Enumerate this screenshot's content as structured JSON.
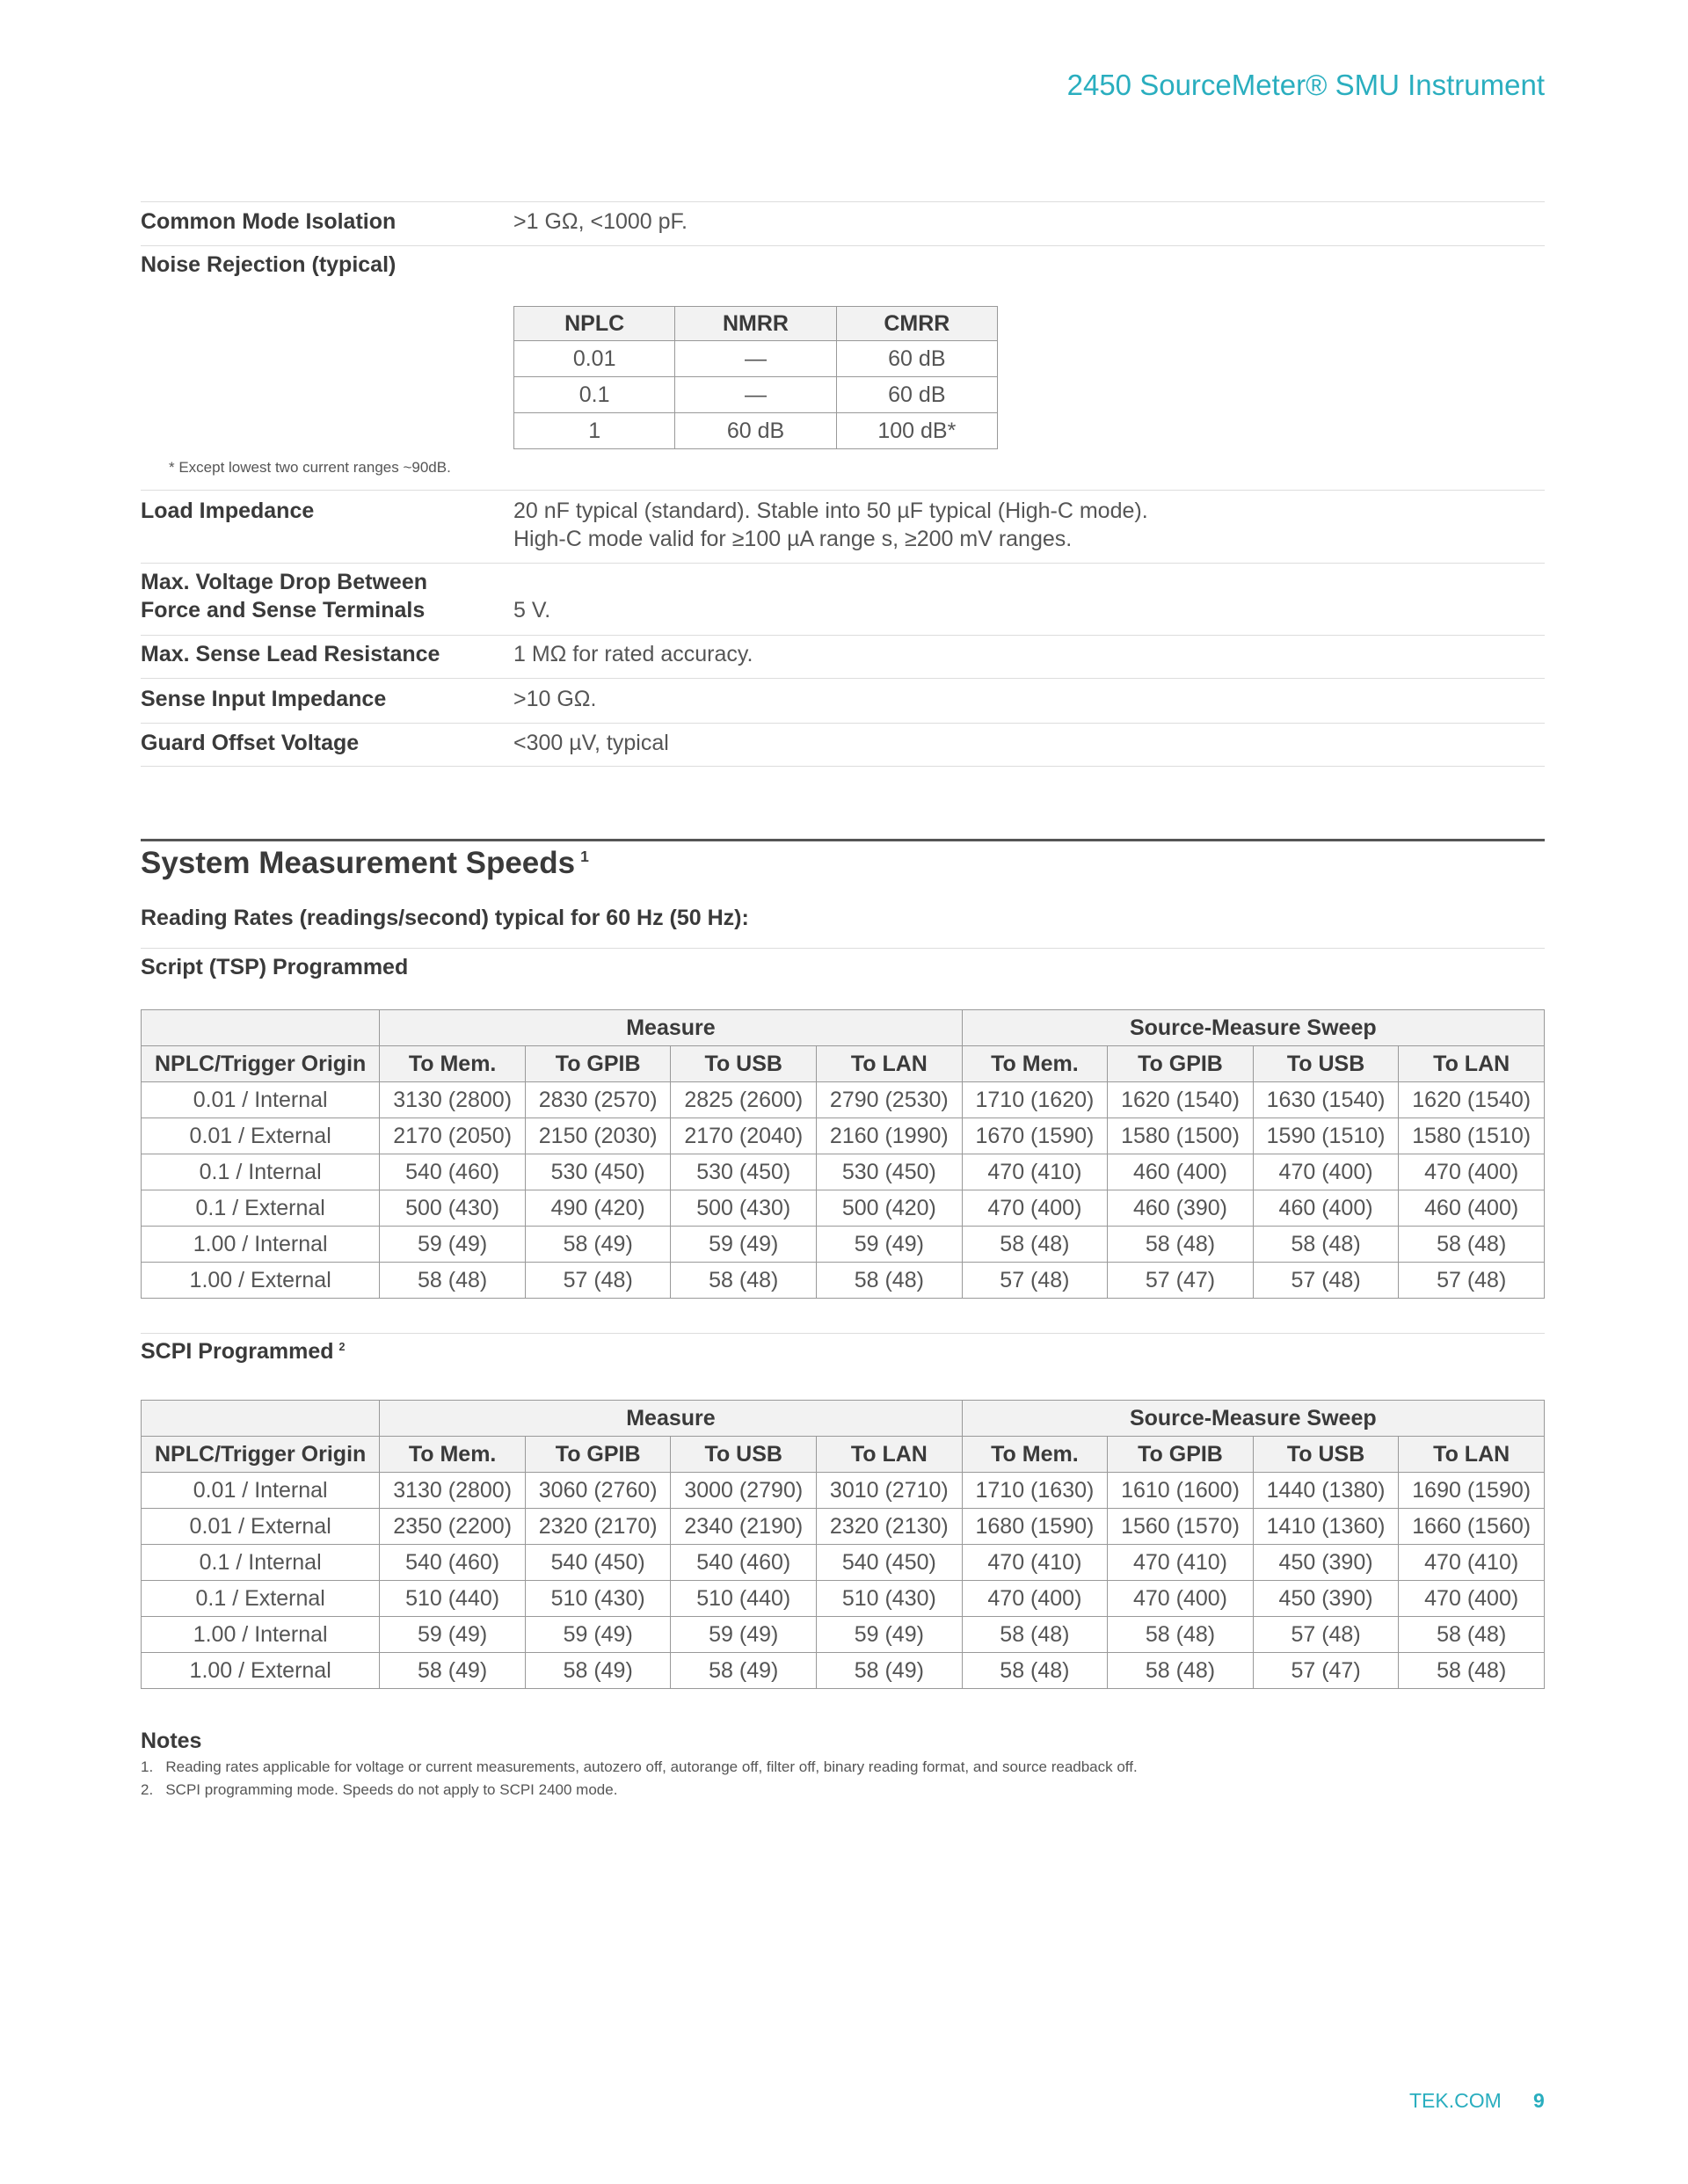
{
  "header": {
    "title": "2450 SourceMeter® SMU Instrument"
  },
  "specs_top": [
    {
      "label": "Common Mode Isolation",
      "value": ">1 GΩ, <1000 pF."
    }
  ],
  "noise_rejection": {
    "label": "Noise Rejection (typical)",
    "table": {
      "columns": [
        "NPLC",
        "NMRR",
        "CMRR"
      ],
      "rows": [
        [
          "0.01",
          "—",
          "60 dB"
        ],
        [
          "0.1",
          "—",
          "60 dB"
        ],
        [
          "1",
          "60 dB",
          "100 dB*"
        ]
      ]
    },
    "footnote": "* Except lowest two current ranges ~90dB."
  },
  "specs": [
    {
      "label": [
        "Load Impedance"
      ],
      "value": [
        "20 nF typical (standard). Stable into 50 µF typical (High-C mode).",
        "High-C mode valid for ≥100 µA range s, ≥200 mV ranges."
      ]
    },
    {
      "label": [
        "Max. Voltage Drop Between",
        "Force and Sense Terminals"
      ],
      "value": [
        "5 V."
      ]
    },
    {
      "label": [
        "Max. Sense Lead Resistance"
      ],
      "value": [
        "1 MΩ for rated accuracy."
      ]
    },
    {
      "label": [
        "Sense Input Impedance"
      ],
      "value": [
        ">10 GΩ."
      ]
    },
    {
      "label": [
        "Guard Offset Voltage"
      ],
      "value": [
        "<300 µV, typical"
      ]
    }
  ],
  "speeds": {
    "title": "System Measurement Speeds",
    "title_note": "1",
    "subtitle": "Reading Rates (readings/second) typical for 60 Hz (50 Hz):",
    "tables": [
      {
        "title": "Script (TSP) Programmed",
        "title_note": null,
        "groups": [
          "Measure",
          "Source-Measure Sweep"
        ],
        "columns": [
          "NPLC/Trigger Origin",
          "To Mem.",
          "To GPIB",
          "To USB",
          "To LAN",
          "To Mem.",
          "To GPIB",
          "To USB",
          "To LAN"
        ],
        "rows": [
          [
            "0.01 / Internal",
            "3130 (2800)",
            "2830 (2570)",
            "2825 (2600)",
            "2790 (2530)",
            "1710 (1620)",
            "1620 (1540)",
            "1630 (1540)",
            "1620 (1540)"
          ],
          [
            "0.01 / External",
            "2170 (2050)",
            "2150 (2030)",
            "2170 (2040)",
            "2160 (1990)",
            "1670 (1590)",
            "1580 (1500)",
            "1590 (1510)",
            "1580 (1510)"
          ],
          [
            "0.1 / Internal",
            "540 (460)",
            "530 (450)",
            "530 (450)",
            "530 (450)",
            "470 (410)",
            "460 (400)",
            "470 (400)",
            "470 (400)"
          ],
          [
            "0.1 / External",
            "500 (430)",
            "490 (420)",
            "500 (430)",
            "500 (420)",
            "470 (400)",
            "460 (390)",
            "460 (400)",
            "460 (400)"
          ],
          [
            "1.00 / Internal",
            "59 (49)",
            "58 (49)",
            "59 (49)",
            "59 (49)",
            "58 (48)",
            "58 (48)",
            "58 (48)",
            "58 (48)"
          ],
          [
            "1.00 / External",
            "58 (48)",
            "57 (48)",
            "58 (48)",
            "58 (48)",
            "57 (48)",
            "57 (47)",
            "57 (48)",
            "57 (48)"
          ]
        ]
      },
      {
        "title": "SCPI Programmed",
        "title_note": "2",
        "groups": [
          "Measure",
          "Source-Measure Sweep"
        ],
        "columns": [
          "NPLC/Trigger Origin",
          "To Mem.",
          "To GPIB",
          "To USB",
          "To LAN",
          "To Mem.",
          "To GPIB",
          "To USB",
          "To LAN"
        ],
        "rows": [
          [
            "0.01 / Internal",
            "3130 (2800)",
            "3060 (2760)",
            "3000 (2790)",
            "3010 (2710)",
            "1710 (1630)",
            "1610 (1600)",
            "1440 (1380)",
            "1690 (1590)"
          ],
          [
            "0.01 / External",
            "2350 (2200)",
            "2320 (2170)",
            "2340 (2190)",
            "2320 (2130)",
            "1680 (1590)",
            "1560 (1570)",
            "1410 (1360)",
            "1660 (1560)"
          ],
          [
            "0.1 / Internal",
            "540 (460)",
            "540 (450)",
            "540 (460)",
            "540 (450)",
            "470 (410)",
            "470 (410)",
            "450 (390)",
            "470 (410)"
          ],
          [
            "0.1 / External",
            "510 (440)",
            "510 (430)",
            "510 (440)",
            "510 (430)",
            "470 (400)",
            "470 (400)",
            "450 (390)",
            "470 (400)"
          ],
          [
            "1.00 / Internal",
            "59 (49)",
            "59 (49)",
            "59 (49)",
            "59 (49)",
            "58 (48)",
            "58 (48)",
            "57 (48)",
            "58 (48)"
          ],
          [
            "1.00 / External",
            "58 (49)",
            "58 (49)",
            "58 (49)",
            "58 (49)",
            "58 (48)",
            "58 (48)",
            "57 (47)",
            "58 (48)"
          ]
        ]
      }
    ]
  },
  "notes": {
    "title": "Notes",
    "items": [
      "1.   Reading rates applicable for voltage or current measurements, autozero off, autorange off, filter off, binary reading format, and source readback off.",
      "2.   SCPI programming mode. Speeds do not apply to SCPI 2400 mode."
    ]
  },
  "footer": {
    "site": "TEK.COM",
    "page": "9"
  }
}
